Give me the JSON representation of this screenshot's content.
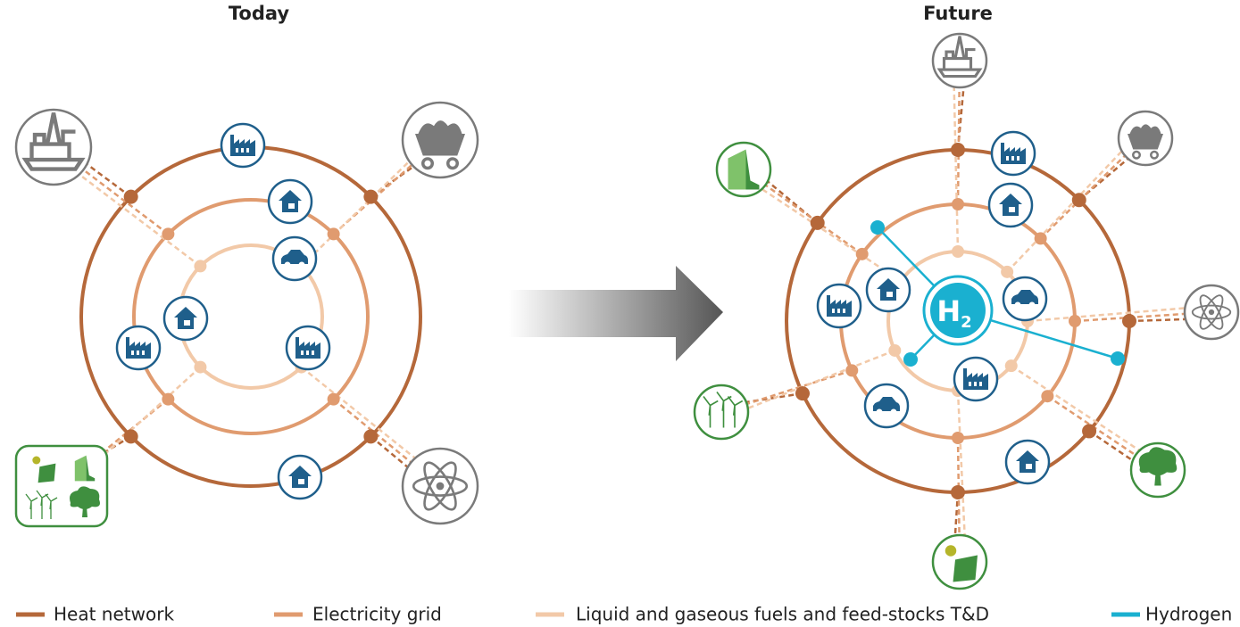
{
  "panels": [
    {
      "title": "Today"
    },
    {
      "title": "Future"
    }
  ],
  "hub": {
    "label": "H",
    "subscript": "2"
  },
  "legend": [
    {
      "label": "Heat network",
      "color": "#b5683a"
    },
    {
      "label": "Electricity grid",
      "color": "#e09b6f"
    },
    {
      "label": "Liquid and gaseous fuels and feed-stocks T&D",
      "color": "#f2c9a8"
    },
    {
      "label": "Hydrogen",
      "color": "#1ab0d0"
    }
  ]
}
